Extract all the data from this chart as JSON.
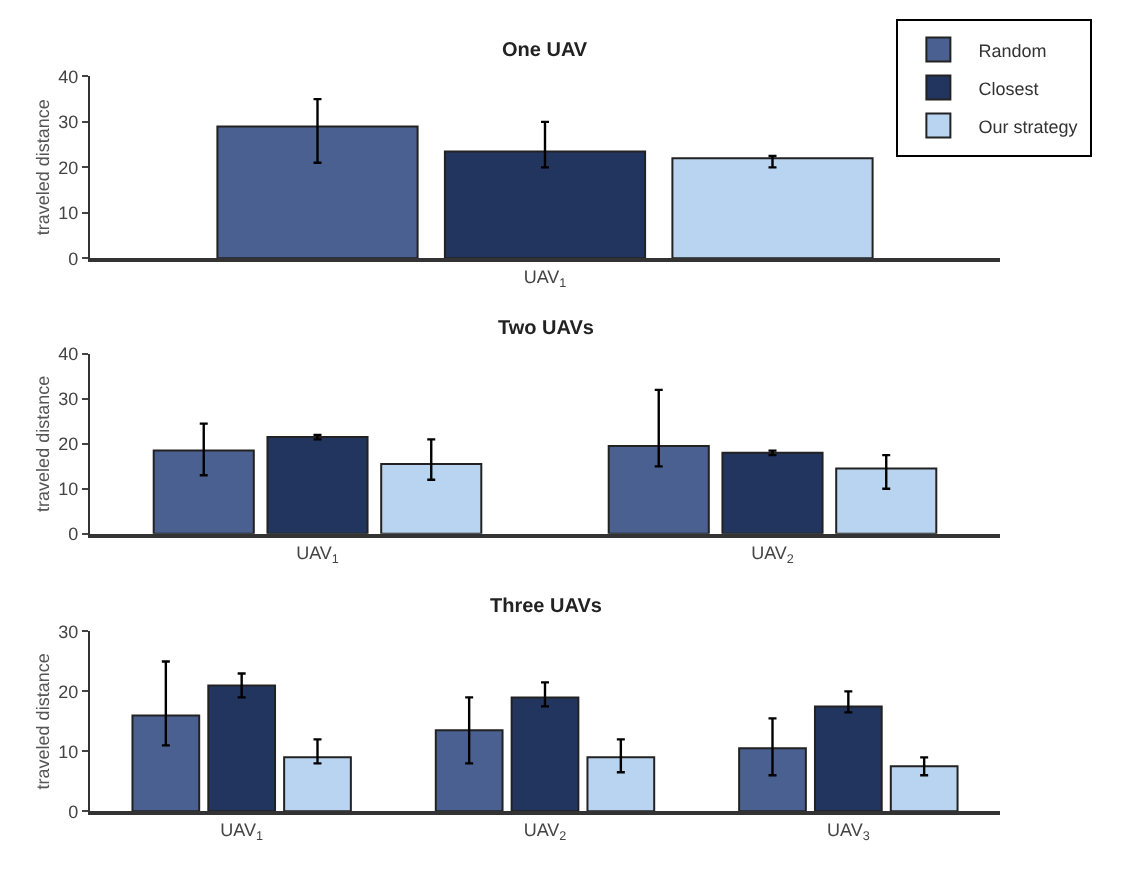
{
  "chart_data": [
    {
      "type": "bar",
      "title": "One UAV",
      "ylabel": "traveled distance",
      "categories": [
        "UAV$_{1}$"
      ],
      "ylim": [
        0,
        40
      ],
      "yticks": [
        0,
        10,
        20,
        30,
        40
      ],
      "grid": false,
      "legend": "top right",
      "series": [
        {
          "name": "Random",
          "color": "#4a6090",
          "values": [
            29
          ],
          "errors": [
            [
              21,
              35
            ]
          ]
        },
        {
          "name": "Closest",
          "color": "#22355e",
          "values": [
            23.5
          ],
          "errors": [
            [
              20,
              30
            ]
          ]
        },
        {
          "name": "Our strategy",
          "color": "#b8d4f0",
          "values": [
            22
          ],
          "errors": [
            [
              20,
              22.5
            ]
          ]
        }
      ]
    },
    {
      "type": "bar",
      "title": "Two UAVs",
      "ylabel": "traveled distance",
      "categories": [
        "UAV$_{1}$",
        "UAV$_{2}$"
      ],
      "ylim": [
        0,
        40
      ],
      "yticks": [
        0,
        10,
        20,
        30,
        40
      ],
      "grid": false,
      "legend": false,
      "series": [
        {
          "color": "#4a6090",
          "values": [
            18.5,
            19.5
          ],
          "errors": [
            [
              13,
              24.5
            ],
            [
              15,
              32
            ]
          ]
        },
        {
          "color": "#22355e",
          "values": [
            21.5,
            18
          ],
          "errors": [
            [
              21,
              22
            ],
            [
              17.5,
              18.5
            ]
          ]
        },
        {
          "color": "#b8d4f0",
          "values": [
            15.5,
            14.5
          ],
          "errors": [
            [
              12,
              21
            ],
            [
              10,
              17.5
            ]
          ]
        }
      ]
    },
    {
      "type": "bar",
      "title": "Three UAVs",
      "ylabel": "traveled distance",
      "categories": [
        "UAV$_{1}$",
        "UAV$_{2}$",
        "UAV$_{3}$"
      ],
      "ylim": [
        0,
        30
      ],
      "yticks": [
        0,
        10,
        20,
        30
      ],
      "grid": false,
      "legend": false,
      "series": [
        {
          "color": "#4a6090",
          "values": [
            16,
            13.5,
            10.5
          ],
          "errors": [
            [
              11,
              25
            ],
            [
              8,
              19
            ],
            [
              6,
              15.5
            ]
          ]
        },
        {
          "color": "#22355e",
          "values": [
            21,
            19,
            17.5
          ],
          "errors": [
            [
              19,
              23
            ],
            [
              17.5,
              21.5
            ],
            [
              16.5,
              20
            ]
          ]
        },
        {
          "color": "#b8d4f0",
          "values": [
            9,
            9,
            7.5
          ],
          "errors": [
            [
              8,
              12
            ],
            [
              6.5,
              12
            ],
            [
              6,
              9
            ]
          ]
        }
      ]
    }
  ]
}
